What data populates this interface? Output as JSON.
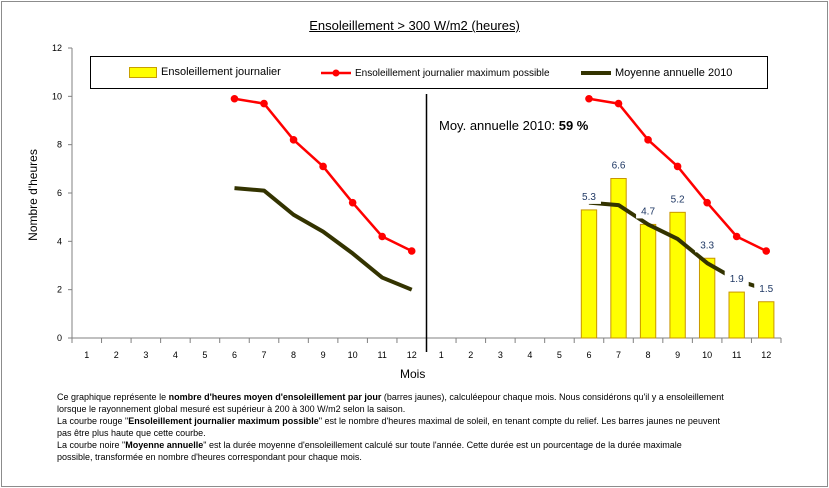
{
  "chart_data": {
    "type": "bar",
    "title": "Ensoleillement > 300 W/m2 (heures)",
    "xlabel": "Mois",
    "ylabel": "Nombre d'heures",
    "ylim": [
      0,
      12
    ],
    "yticks": [
      "0",
      "2",
      "4",
      "6",
      "8",
      "10",
      "12"
    ],
    "categories_left": [
      "1",
      "2",
      "3",
      "4",
      "5",
      "6",
      "7",
      "8",
      "9",
      "10",
      "11",
      "12"
    ],
    "categories_right": [
      "1",
      "2",
      "3",
      "4",
      "5",
      "6",
      "7",
      "8",
      "9",
      "10",
      "11",
      "12"
    ],
    "legend_placement": "top",
    "grid": false,
    "series": [
      {
        "name": "Ensoleillement journalier",
        "kind": "bar",
        "color": "#ffff00",
        "panel": "right",
        "months": [
          6,
          7,
          8,
          9,
          10,
          11,
          12
        ],
        "values": [
          5.3,
          6.6,
          4.7,
          5.2,
          3.3,
          1.9,
          1.5
        ],
        "labels": [
          "5.3",
          "6.6",
          "4.7",
          "5.2",
          "3.3",
          "1.9",
          "1.5"
        ]
      },
      {
        "name": "Ensoleillement journalier maximum possible",
        "kind": "line",
        "color": "#ff0000",
        "marker": true,
        "panels": {
          "left": {
            "months": [
              6,
              7,
              8,
              9,
              10,
              11,
              12
            ],
            "values": [
              9.9,
              9.7,
              8.2,
              7.1,
              5.6,
              4.2,
              3.6
            ]
          },
          "right": {
            "months": [
              6,
              7,
              8,
              9,
              10,
              11,
              12
            ],
            "values": [
              9.9,
              9.7,
              8.2,
              7.1,
              5.6,
              4.2,
              3.6
            ]
          }
        }
      },
      {
        "name": "Moyenne annuelle 2010",
        "kind": "line",
        "color": "#333300",
        "marker": false,
        "panels": {
          "left": {
            "months": [
              6,
              7,
              8,
              9,
              10,
              11,
              12
            ],
            "values": [
              6.2,
              6.1,
              5.1,
              4.4,
              3.5,
              2.5,
              2.0
            ]
          },
          "right": {
            "months": [
              6,
              7,
              8,
              9,
              10,
              11,
              12
            ],
            "values": [
              5.6,
              5.5,
              4.7,
              4.1,
              3.1,
              2.4,
              2.0
            ]
          }
        }
      }
    ]
  },
  "annotation": {
    "text": "Moy. annuelle 2010: ",
    "value": "59 %"
  },
  "footer": {
    "line1_a": "Ce graphique représente le ",
    "line1_b": "nombre d'heures moyen d'ensoleillement par jour",
    "line1_c": " (barres jaunes), calculéepour chaque mois. Nous considérons qu'il y a ensoleillement",
    "line2": "lorsque le rayonnement global mesuré est supérieur à 200 à 300 W/m2 selon la saison.",
    "line3_a": "La courbe rouge \"",
    "line3_b": "Ensoleillement journalier  maximum possible",
    "line3_c": "\" est le nombre d'heures maximal de soleil, en tenant compte du relief. Les barres jaunes ne peuvent",
    "line4": "pas être plus haute que cette courbe.",
    "line5_a": "La courbe noire \"",
    "line5_b": "Moyenne annuelle",
    "line5_c": "\"  est la durée moyenne d'ensoleillement calculé sur toute l'année. Cette durée est un pourcentage de la durée maximale",
    "line6": "possible, transformée en nombre d'heures correspondant pour chaque mois."
  }
}
